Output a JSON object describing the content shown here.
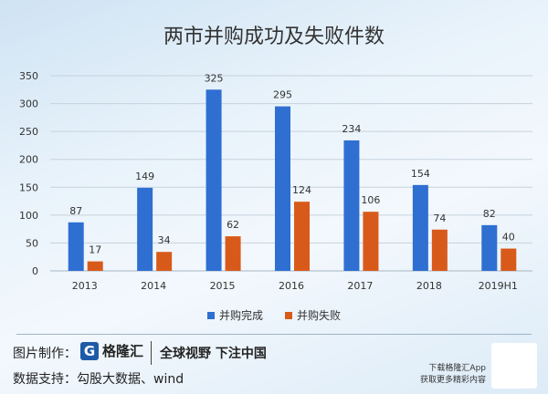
{
  "chart_data": {
    "type": "bar",
    "title": "两市并购成功及失败件数",
    "categories": [
      "2013",
      "2014",
      "2015",
      "2016",
      "2017",
      "2018",
      "2019H1"
    ],
    "series": [
      {
        "name": "并购完成",
        "color": "#2e6fd1",
        "values": [
          87,
          149,
          325,
          295,
          234,
          154,
          82
        ]
      },
      {
        "name": "并购失败",
        "color": "#d85a1a",
        "values": [
          17,
          34,
          62,
          124,
          106,
          74,
          40
        ]
      }
    ],
    "ylim": [
      0,
      350
    ],
    "yticks": [
      0,
      50,
      100,
      150,
      200,
      250,
      300,
      350
    ],
    "grid": true,
    "legend": "bottom"
  },
  "footer": {
    "made_by_label": "图片制作：",
    "logo_text": "格隆汇",
    "slogan": "全球视野 下注中国",
    "data_source": "数据支持：勾股大数据、wind",
    "app_line1": "下载格隆汇App",
    "app_line2": "获取更多精彩内容"
  }
}
